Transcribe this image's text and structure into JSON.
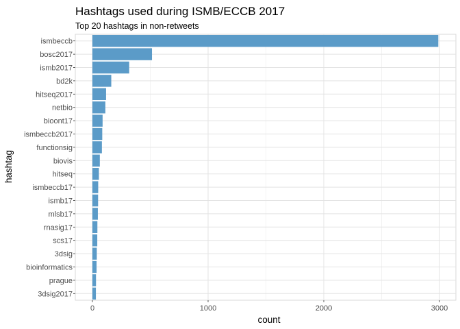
{
  "chart_data": {
    "type": "bar",
    "orientation": "horizontal",
    "title": "Hashtags used during ISMB/ECCB 2017",
    "subtitle": "Top 20 hashtags in non-retweets",
    "xlabel": "count",
    "ylabel": "hashtag",
    "xlim": [
      0,
      3150
    ],
    "x_ticks": [
      0,
      1000,
      2000,
      3000
    ],
    "x_tick_labels": [
      "0",
      "1000",
      "2000",
      "3000"
    ],
    "grid": true,
    "bar_color": "#5b9bc8",
    "categories": [
      "ismbeccb",
      "bosc2017",
      "ismb2017",
      "bd2k",
      "hitseq2017",
      "netbio",
      "bioont17",
      "ismbeccb2017",
      "functionsig",
      "biovis",
      "hitseq",
      "ismbeccb17",
      "ismb17",
      "mlsb17",
      "rnasig17",
      "scs17",
      "3dsig",
      "bioinformatics",
      "prague",
      "3dsig2017"
    ],
    "values": [
      2990,
      515,
      318,
      163,
      118,
      112,
      88,
      85,
      82,
      64,
      56,
      50,
      49,
      47,
      43,
      42,
      38,
      36,
      31,
      30
    ]
  }
}
